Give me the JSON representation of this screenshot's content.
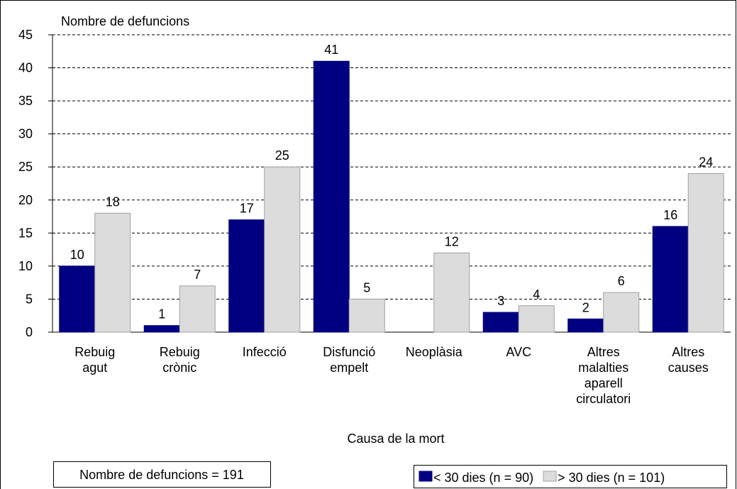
{
  "chart_data": {
    "type": "bar",
    "y_label": "Nombre de defuncions",
    "x_label": "Causa de la mort",
    "annotation": "Nombre de defuncions = 191",
    "categories": [
      "Rebuig agut",
      "Rebuig crònic",
      "Infecció",
      "Disfunció empelt",
      "Neoplàsia",
      "AVC",
      "Altres malalties aparell circulatori",
      "Altres causes"
    ],
    "series": [
      {
        "name": "< 30 dies (n = 90)",
        "color": "#000080",
        "values": [
          10,
          1,
          17,
          41,
          null,
          3,
          2,
          16
        ]
      },
      {
        "name": "> 30 dies (n = 101)",
        "color": "#dcdcdc",
        "values": [
          18,
          7,
          25,
          5,
          12,
          4,
          6,
          24
        ]
      }
    ],
    "ylim": [
      0,
      45
    ],
    "yticks": [
      0,
      5,
      10,
      15,
      20,
      25,
      30,
      35,
      40,
      45
    ],
    "grid": true,
    "legend": "bottom-right"
  }
}
